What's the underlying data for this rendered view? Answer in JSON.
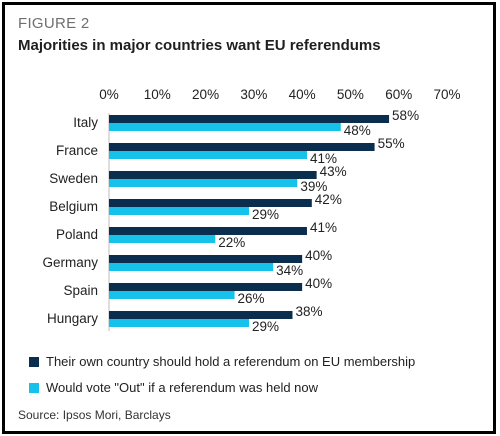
{
  "figure_label": "FIGURE 2",
  "title": "Majorities in major countries want EU referendums",
  "source": "Source: Ipsos Mori, Barclays",
  "chart_data": {
    "type": "bar",
    "orientation": "horizontal",
    "title": "Majorities in major countries want EU referendums",
    "xlabel": "",
    "ylabel": "",
    "xlim": [
      0,
      70
    ],
    "x_ticks": [
      "0%",
      "10%",
      "20%",
      "30%",
      "40%",
      "50%",
      "60%",
      "70%"
    ],
    "tick_values": [
      0,
      10,
      20,
      30,
      40,
      50,
      60,
      70
    ],
    "grid": false,
    "legend_position": "bottom",
    "categories": [
      "Italy",
      "France",
      "Sweden",
      "Belgium",
      "Poland",
      "Germany",
      "Spain",
      "Hungary"
    ],
    "series": [
      {
        "name": "Their own country should hold a referendum on EU membership",
        "color": "#0b2e4f",
        "values": [
          58,
          55,
          43,
          42,
          41,
          40,
          40,
          38
        ],
        "labels": [
          "58%",
          "55%",
          "43%",
          "42%",
          "41%",
          "40%",
          "40%",
          "38%"
        ]
      },
      {
        "name": "Would vote \"Out\" if a referendum was held now",
        "color": "#16c1ea",
        "values": [
          48,
          41,
          39,
          29,
          22,
          34,
          26,
          29
        ],
        "labels": [
          "48%",
          "41%",
          "39%",
          "29%",
          "22%",
          "34%",
          "26%",
          "29%"
        ]
      }
    ]
  }
}
